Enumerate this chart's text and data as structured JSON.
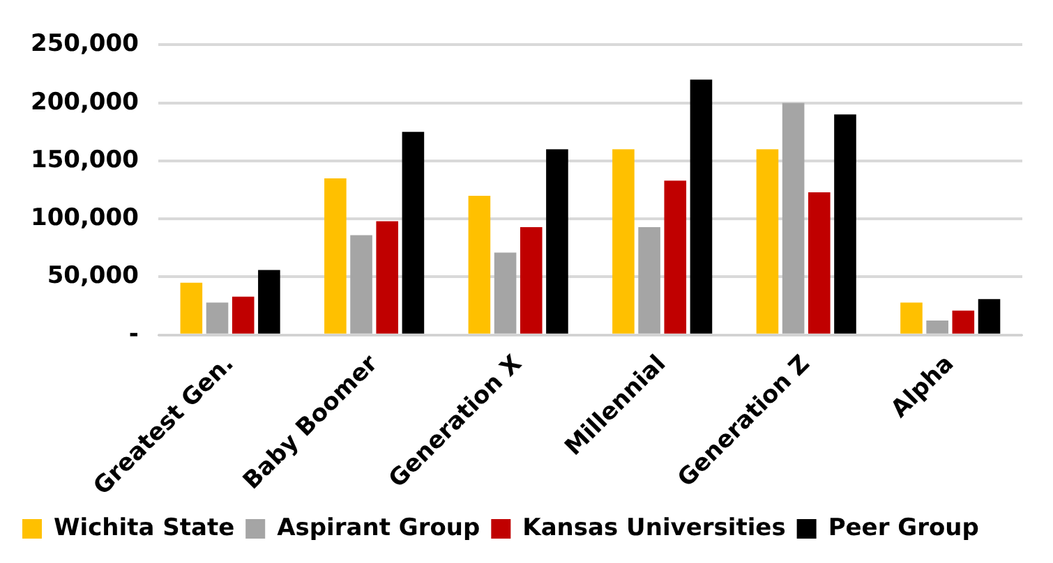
{
  "chart_data": {
    "type": "bar",
    "categories": [
      "Greatest Gen.",
      "Baby Boomer",
      "Generation X",
      "Millennial",
      "Generation Z",
      "Alpha"
    ],
    "series": [
      {
        "name": "Wichita State",
        "color": "#ffc000",
        "values": [
          45000,
          135000,
          120000,
          160000,
          160000,
          28000
        ]
      },
      {
        "name": "Aspirant Group",
        "color": "#a5a5a5",
        "values": [
          28000,
          86000,
          71000,
          93000,
          200000,
          12500
        ]
      },
      {
        "name": "Kansas Universities",
        "color": "#c00000",
        "values": [
          33000,
          98000,
          93000,
          133000,
          123000,
          21000
        ]
      },
      {
        "name": "Peer Group",
        "color": "#000000",
        "values": [
          56000,
          175000,
          160000,
          220000,
          190000,
          31000
        ]
      }
    ],
    "ylim": [
      0,
      250000
    ],
    "yticks": [
      {
        "value": 0,
        "label": "-"
      },
      {
        "value": 50000,
        "label": "50,000"
      },
      {
        "value": 100000,
        "label": "100,000"
      },
      {
        "value": 150000,
        "label": "150,000"
      },
      {
        "value": 200000,
        "label": "200,000"
      },
      {
        "value": 250000,
        "label": "250,000"
      }
    ],
    "grid": "y",
    "legend": "bottom"
  }
}
